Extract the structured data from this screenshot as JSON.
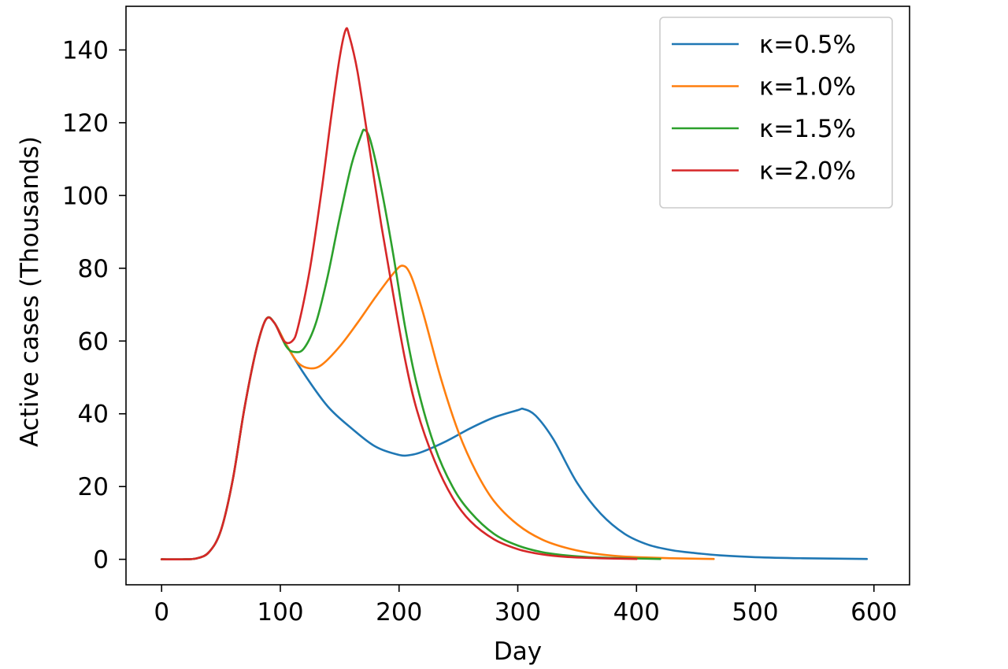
{
  "chart_data": {
    "type": "line",
    "title": "",
    "xlabel": "Day",
    "ylabel": "Active cases (Thousands)",
    "xlim": [
      -30,
      630
    ],
    "ylim": [
      -7,
      152
    ],
    "x_ticks": [
      0,
      100,
      200,
      300,
      400,
      500,
      600
    ],
    "y_ticks": [
      0,
      20,
      40,
      60,
      80,
      100,
      120,
      140
    ],
    "grid": false,
    "legend_position": "top-right",
    "series": [
      {
        "name": "κ=0.5%",
        "color": "#1f77b4",
        "points": [
          [
            0,
            0
          ],
          [
            20,
            0
          ],
          [
            30,
            0.3
          ],
          [
            40,
            2
          ],
          [
            50,
            8
          ],
          [
            60,
            22
          ],
          [
            70,
            42
          ],
          [
            80,
            58
          ],
          [
            88,
            66
          ],
          [
            95,
            65
          ],
          [
            105,
            59
          ],
          [
            120,
            51
          ],
          [
            140,
            42
          ],
          [
            160,
            36
          ],
          [
            180,
            31
          ],
          [
            200,
            28.7
          ],
          [
            210,
            28.7
          ],
          [
            220,
            29.6
          ],
          [
            240,
            32.5
          ],
          [
            260,
            36
          ],
          [
            280,
            39
          ],
          [
            300,
            41
          ],
          [
            305,
            41.3
          ],
          [
            315,
            39.5
          ],
          [
            330,
            33
          ],
          [
            350,
            21
          ],
          [
            370,
            12.5
          ],
          [
            390,
            7
          ],
          [
            410,
            4
          ],
          [
            430,
            2.5
          ],
          [
            450,
            1.7
          ],
          [
            470,
            1.1
          ],
          [
            500,
            0.6
          ],
          [
            540,
            0.3
          ],
          [
            594,
            0.1
          ]
        ]
      },
      {
        "name": "κ=1.0%",
        "color": "#ff7f0e",
        "points": [
          [
            0,
            0
          ],
          [
            20,
            0
          ],
          [
            30,
            0.3
          ],
          [
            40,
            2
          ],
          [
            50,
            8
          ],
          [
            60,
            22
          ],
          [
            70,
            42
          ],
          [
            80,
            58
          ],
          [
            88,
            66
          ],
          [
            95,
            65
          ],
          [
            105,
            59
          ],
          [
            115,
            54
          ],
          [
            125,
            52.5
          ],
          [
            135,
            53.5
          ],
          [
            150,
            58.5
          ],
          [
            165,
            65
          ],
          [
            180,
            72
          ],
          [
            195,
            78.5
          ],
          [
            203,
            80.7
          ],
          [
            210,
            78
          ],
          [
            220,
            68
          ],
          [
            235,
            50
          ],
          [
            250,
            35
          ],
          [
            265,
            24
          ],
          [
            280,
            16
          ],
          [
            300,
            9.5
          ],
          [
            320,
            5.5
          ],
          [
            340,
            3.2
          ],
          [
            360,
            1.8
          ],
          [
            380,
            1
          ],
          [
            400,
            0.6
          ],
          [
            430,
            0.3
          ],
          [
            465,
            0.1
          ]
        ]
      },
      {
        "name": "κ=1.5%",
        "color": "#2ca02c",
        "points": [
          [
            0,
            0
          ],
          [
            20,
            0
          ],
          [
            30,
            0.3
          ],
          [
            40,
            2
          ],
          [
            50,
            8
          ],
          [
            60,
            22
          ],
          [
            70,
            42
          ],
          [
            80,
            58
          ],
          [
            88,
            66
          ],
          [
            95,
            65
          ],
          [
            105,
            58.5
          ],
          [
            112,
            57
          ],
          [
            120,
            58
          ],
          [
            130,
            65
          ],
          [
            140,
            78
          ],
          [
            150,
            94
          ],
          [
            160,
            108.5
          ],
          [
            168,
            116.5
          ],
          [
            171,
            118
          ],
          [
            176,
            115
          ],
          [
            185,
            102
          ],
          [
            195,
            84
          ],
          [
            205,
            64
          ],
          [
            215,
            48
          ],
          [
            230,
            31
          ],
          [
            245,
            20
          ],
          [
            260,
            13
          ],
          [
            280,
            7
          ],
          [
            300,
            3.8
          ],
          [
            320,
            2
          ],
          [
            340,
            1.1
          ],
          [
            360,
            0.6
          ],
          [
            390,
            0.3
          ],
          [
            420,
            0.1
          ]
        ]
      },
      {
        "name": "κ=2.0%",
        "color": "#d62728",
        "points": [
          [
            0,
            0
          ],
          [
            20,
            0
          ],
          [
            30,
            0.3
          ],
          [
            40,
            2
          ],
          [
            50,
            8
          ],
          [
            60,
            22
          ],
          [
            70,
            42
          ],
          [
            80,
            58
          ],
          [
            88,
            66
          ],
          [
            95,
            65
          ],
          [
            103,
            60
          ],
          [
            110,
            60
          ],
          [
            115,
            64
          ],
          [
            125,
            80
          ],
          [
            135,
            102
          ],
          [
            143,
            122
          ],
          [
            150,
            138
          ],
          [
            155,
            145.5
          ],
          [
            158,
            144
          ],
          [
            165,
            134
          ],
          [
            175,
            113
          ],
          [
            185,
            92
          ],
          [
            195,
            73
          ],
          [
            205,
            55
          ],
          [
            215,
            41
          ],
          [
            230,
            27
          ],
          [
            245,
            17
          ],
          [
            260,
            10.5
          ],
          [
            280,
            5.5
          ],
          [
            300,
            2.8
          ],
          [
            320,
            1.4
          ],
          [
            340,
            0.7
          ],
          [
            370,
            0.3
          ],
          [
            400,
            0.1
          ]
        ]
      }
    ]
  }
}
